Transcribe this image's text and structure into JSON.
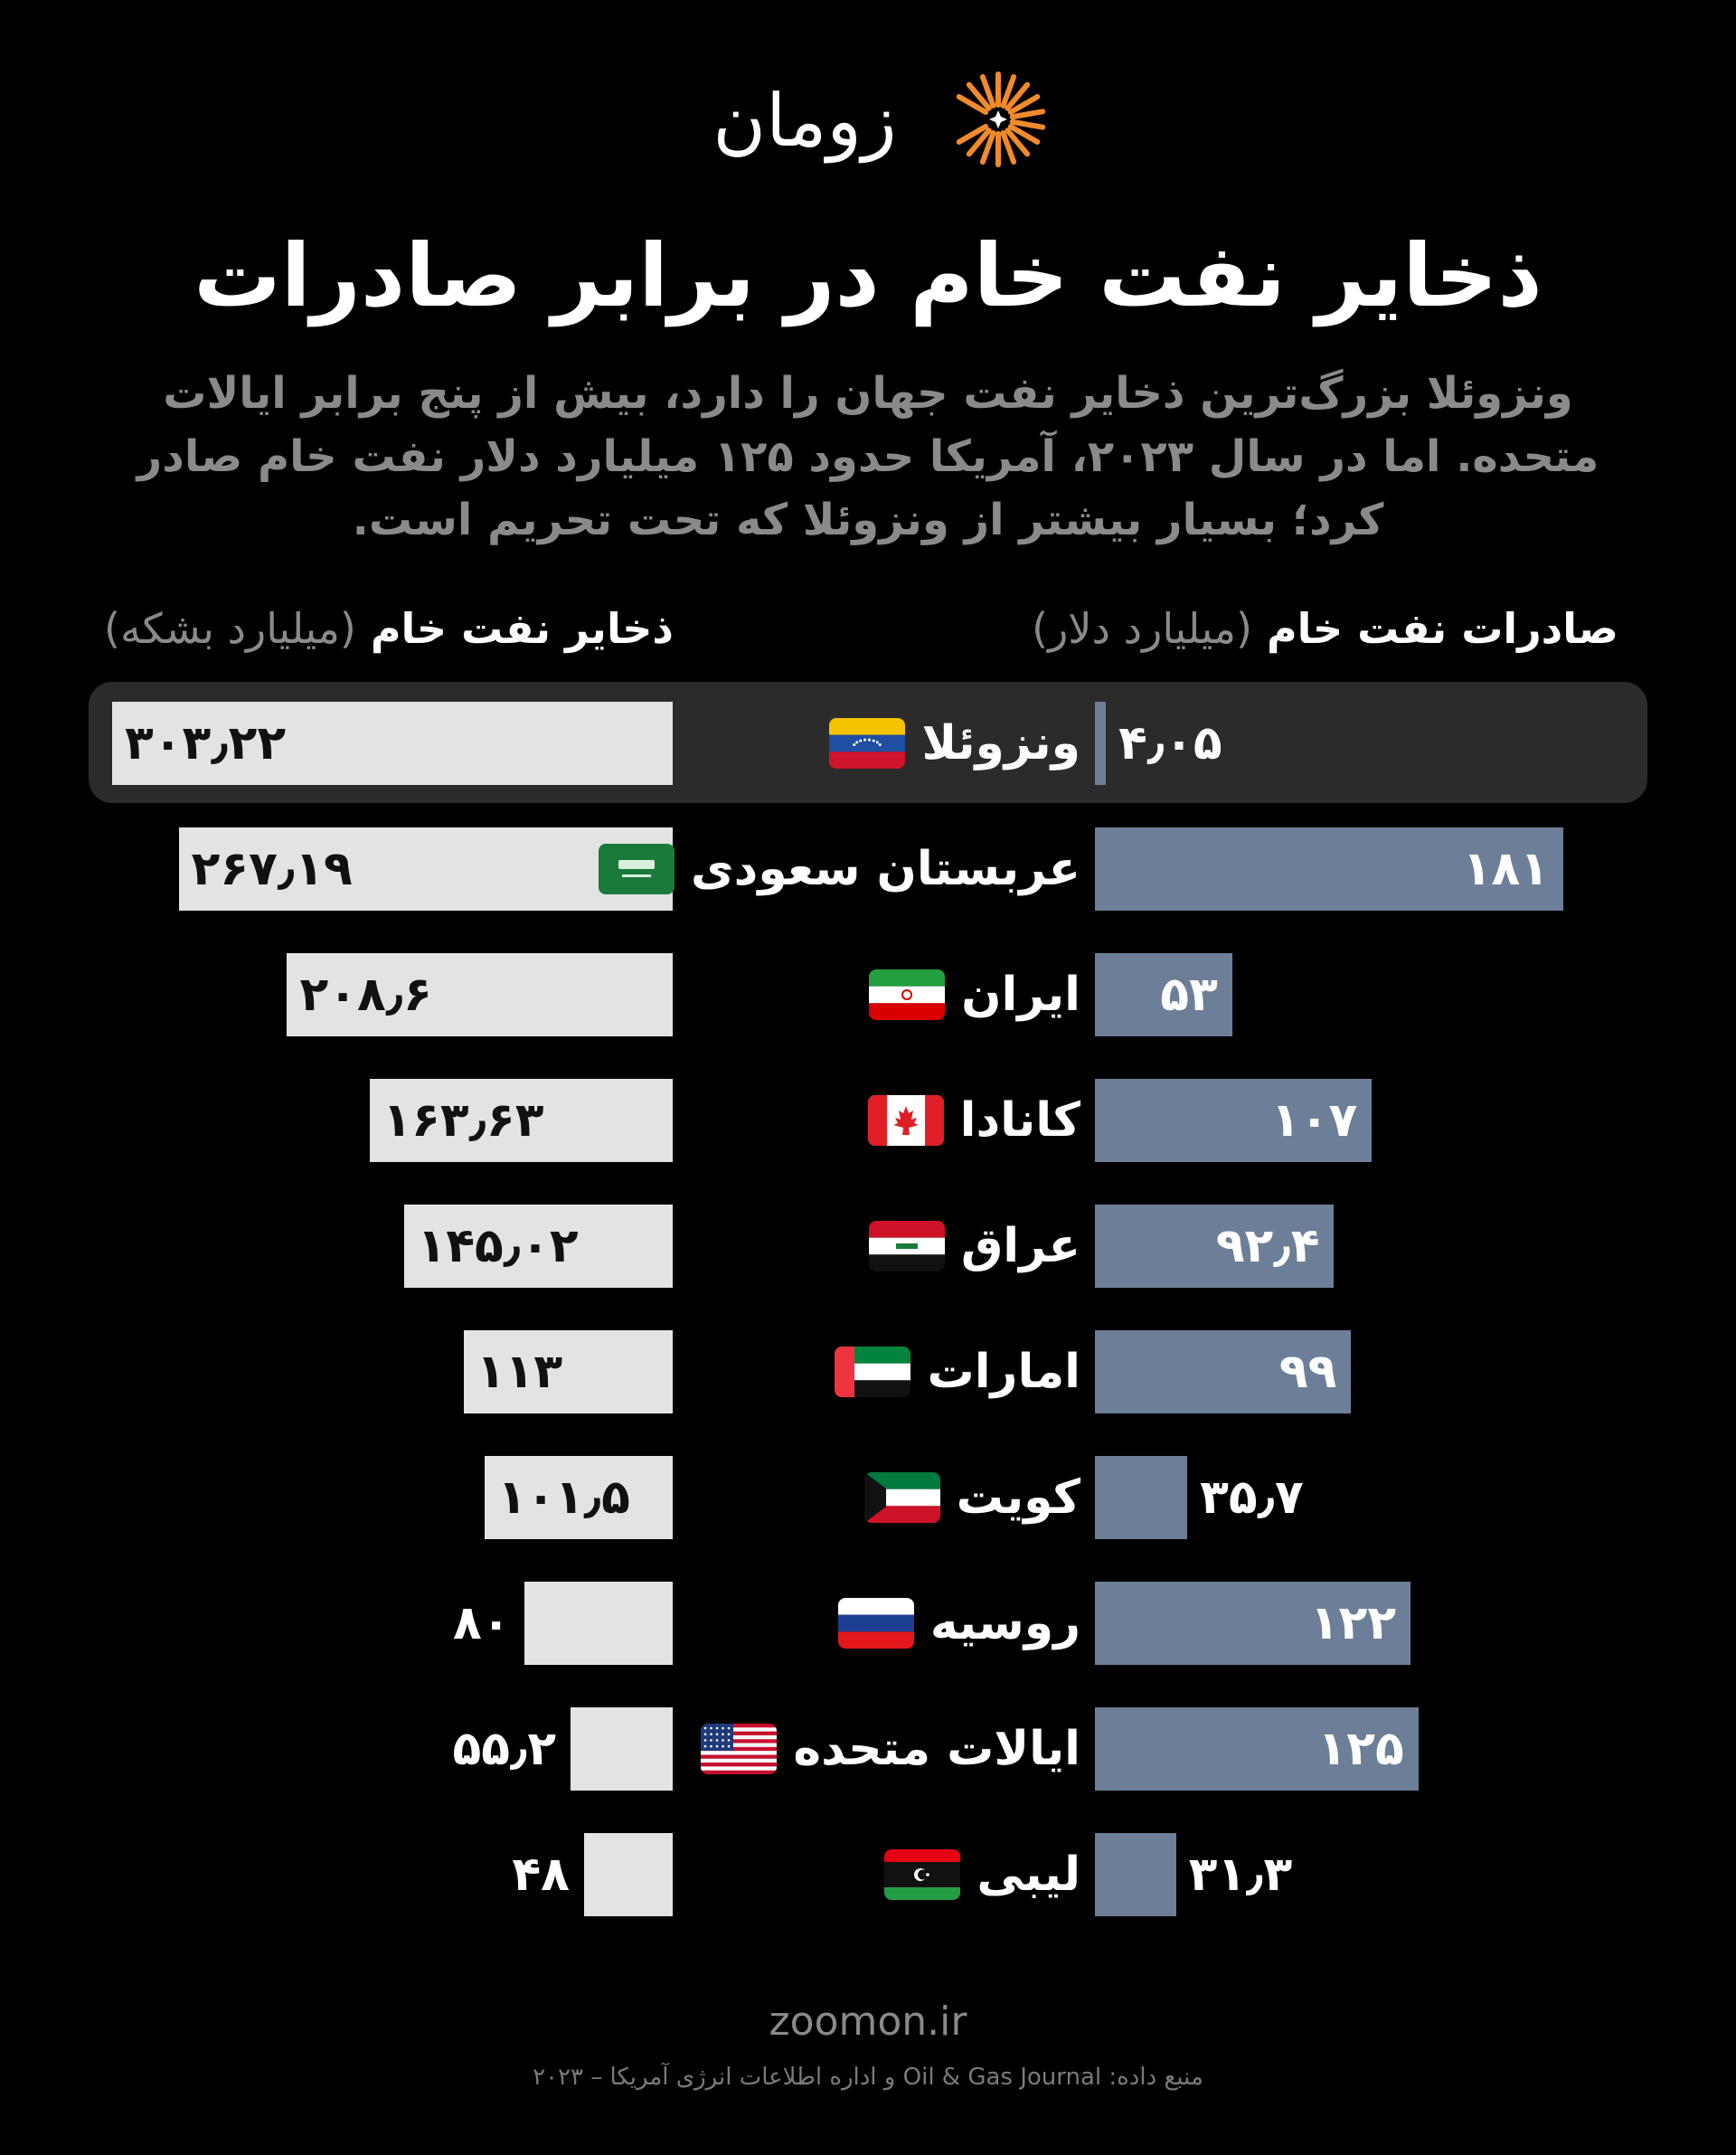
{
  "brand": {
    "name": "زومان",
    "site": "zoomon.ir"
  },
  "title": "ذخایر نفت خام در برابر صادرات",
  "subtitle": "ونزوئلا بزرگ‌ترین ذخایر نفت جهان را دارد، بیش از پنج برابر ایالات متحده. اما در سال ۲۰۲۳، آمریکا حدود ۱۲۵ میلیارد دلار نفت خام صادر کرد؛ بسیار بیشتر از ونزوئلا که تحت تحریم است.",
  "source": "منبع داده: Oil & Gas Journal و اداره اطلاعات انرژی آمریکا – ۲۰۲۳",
  "headers": {
    "exports": {
      "label": "صادرات نفت خام",
      "unit": "(میلیارد دلار)"
    },
    "reserves": {
      "label": "ذخایر نفت خام",
      "unit": "(میلیارد بشکه)"
    }
  },
  "colors": {
    "background": "#000000",
    "reserves_bar": "#e3e3e3",
    "exports_bar": "#6d7f98",
    "highlight_row": "#2b2b2b",
    "logo_accent": "#f08a2c"
  },
  "chart_data": {
    "type": "bar",
    "layout": "butterfly",
    "highlighted": "ونزوئلا",
    "categories": [
      "ونزوئلا",
      "عربستان سعودی",
      "ایران",
      "کانادا",
      "عراق",
      "امارات",
      "کویت",
      "روسیه",
      "ایالات متحده",
      "لیبی"
    ],
    "flags": [
      "venezuela",
      "saudi-arabia",
      "iran",
      "canada",
      "iraq",
      "uae",
      "kuwait",
      "russia",
      "usa",
      "libya"
    ],
    "series": [
      {
        "name": "ذخایر نفت خام (میلیارد بشکه)",
        "values": [
          303.22,
          267.19,
          208.6,
          163.63,
          145.02,
          113,
          101.5,
          80,
          55.2,
          48
        ],
        "labels": [
          "۳۰۳٫۲۲",
          "۲۶۷٫۱۹",
          "۲۰۸٫۶",
          "۱۶۳٫۶۳",
          "۱۴۵٫۰۲",
          "۱۱۳",
          "۱۰۱٫۵",
          "۸۰",
          "۵۵٫۲",
          "۴۸"
        ]
      },
      {
        "name": "صادرات نفت خام (میلیارد دلار)",
        "values": [
          4.05,
          181,
          53,
          107,
          92.4,
          99,
          35.7,
          122,
          125,
          31.3
        ],
        "labels": [
          "۴٫۰۵",
          "۱۸۱",
          "۵۳",
          "۱۰۷",
          "۹۲٫۴",
          "۹۹",
          "۳۵٫۷",
          "۱۲۲",
          "۱۲۵",
          "۳۱٫۳"
        ]
      }
    ]
  }
}
